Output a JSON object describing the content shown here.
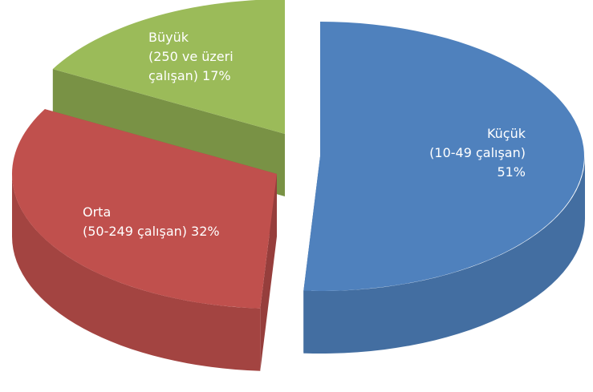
{
  "chart_data": {
    "type": "pie",
    "categories": [
      [
        "Küçük",
        "(10-49 çalışan)"
      ],
      [
        "Orta",
        "(50-249 çalışan)"
      ],
      [
        "Büyük",
        "(250 ve üzeri",
        "çalışan)"
      ]
    ],
    "values": [
      51,
      32,
      17
    ],
    "value_labels": [
      "51%",
      "32%",
      "17%"
    ],
    "colors": [
      "#4f81bd",
      "#c0504d",
      "#9bbb59"
    ]
  }
}
